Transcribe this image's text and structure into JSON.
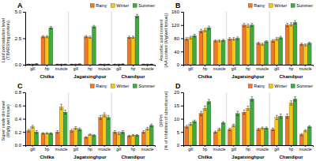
{
  "chart_data": [
    {
      "type": "bar",
      "title": "A",
      "y_label": "Lipid peroxidation level\n(TBARS/mg protein)",
      "categories": [
        "gill",
        "hp",
        "muscle",
        "gill",
        "hp",
        "muscle",
        "gill",
        "hp",
        "muscle"
      ],
      "x_groups": [
        "Chilka",
        "Jagatsinghpur",
        "Chandipur"
      ],
      "series": [
        {
          "name": "Rainy",
          "color": "#F07820",
          "values": [
            0.05,
            2.65,
            0.05,
            0.05,
            2.65,
            0.05,
            0.05,
            2.6,
            0.05
          ],
          "errors": [
            0.01,
            0.1,
            0.01,
            0.01,
            0.1,
            0.01,
            0.01,
            0.1,
            0.01
          ]
        },
        {
          "name": "Winter",
          "color": "#F5C518",
          "values": [
            0.05,
            2.65,
            0.05,
            0.05,
            2.6,
            0.05,
            0.05,
            2.6,
            0.05
          ],
          "errors": [
            0.01,
            0.1,
            0.01,
            0.01,
            0.1,
            0.01,
            0.01,
            0.1,
            0.01
          ]
        },
        {
          "name": "Summer",
          "color": "#3DAA3D",
          "values": [
            0.08,
            3.5,
            0.05,
            0.07,
            3.6,
            0.05,
            0.07,
            4.6,
            0.05
          ],
          "errors": [
            0.01,
            0.12,
            0.01,
            0.01,
            0.12,
            0.01,
            0.01,
            0.15,
            0.01
          ]
        }
      ],
      "ylim": [
        0,
        5
      ],
      "yticks": [
        {
          "value": 0,
          "label": "0.0"
        },
        2.5,
        {
          "value": 5,
          "label": "5.0"
        }
      ],
      "grid": false,
      "legend": "top"
    },
    {
      "type": "bar",
      "title": "B",
      "y_label": "Ascorbic acid content\n(AA content (Mg/wet tissue))",
      "categories": [
        "gill",
        "hp",
        "muscle",
        "gill",
        "hp",
        "muscle",
        "gill",
        "hp",
        "muscle"
      ],
      "x_groups": [
        "Chilka",
        "Jagatsinghpur",
        "Chandipur"
      ],
      "series": [
        {
          "name": "Rainy",
          "color": "#F07820",
          "values": [
            78,
            102,
            72,
            78,
            120,
            65,
            72,
            120,
            62
          ],
          "errors": [
            4,
            5,
            3,
            4,
            5,
            3,
            4,
            5,
            3
          ]
        },
        {
          "name": "Winter",
          "color": "#F5C518",
          "values": [
            82,
            105,
            72,
            78,
            118,
            62,
            78,
            122,
            60
          ],
          "errors": [
            4,
            5,
            3,
            4,
            5,
            3,
            4,
            5,
            3
          ]
        },
        {
          "name": "Summer",
          "color": "#3DAA3D",
          "values": [
            88,
            112,
            74,
            80,
            120,
            70,
            82,
            128,
            65
          ],
          "errors": [
            4,
            5,
            3,
            4,
            5,
            3,
            4,
            5,
            3
          ]
        }
      ],
      "ylim": [
        0,
        160
      ],
      "yticks": [
        0,
        40,
        80,
        120,
        160
      ],
      "grid": false,
      "legend": "top"
    },
    {
      "type": "bar",
      "title": "C",
      "y_label": "Super oxide dis-level\n(Mg/g wet tissue)",
      "categories": [
        "gill",
        "hp",
        "muscle",
        "gill",
        "hp",
        "muscle",
        "gill",
        "hp",
        "muscle"
      ],
      "x_groups": [
        "Chilka",
        "Jagatsinghpur",
        "Chandipur"
      ],
      "series": [
        {
          "name": "Rainy",
          "color": "#F07820",
          "values": [
            0.22,
            0.18,
            0.2,
            0.22,
            0.12,
            0.42,
            0.2,
            0.14,
            0.2
          ],
          "errors": [
            0.02,
            0.01,
            0.02,
            0.02,
            0.01,
            0.03,
            0.02,
            0.01,
            0.02
          ]
        },
        {
          "name": "Winter",
          "color": "#F5C518",
          "values": [
            0.28,
            0.18,
            0.58,
            0.26,
            0.16,
            0.46,
            0.18,
            0.15,
            0.25
          ],
          "errors": [
            0.02,
            0.01,
            0.04,
            0.02,
            0.01,
            0.03,
            0.02,
            0.01,
            0.02
          ]
        },
        {
          "name": "Summer",
          "color": "#3DAA3D",
          "values": [
            0.2,
            0.18,
            0.5,
            0.24,
            0.15,
            0.42,
            0.2,
            0.15,
            0.3
          ],
          "errors": [
            0.02,
            0.01,
            0.03,
            0.02,
            0.01,
            0.03,
            0.02,
            0.01,
            0.02
          ]
        }
      ],
      "ylim": [
        0,
        0.8
      ],
      "yticks": [
        {
          "value": 0,
          "label": "0.0"
        },
        0.2,
        0.4,
        0.6,
        0.8
      ],
      "grid": false,
      "legend": "top"
    },
    {
      "type": "bar",
      "title": "D",
      "y_label": "DPPH\n(% of Inhibition of absorbance)",
      "categories": [
        "gill",
        "hp",
        "muscle",
        "gill",
        "hp",
        "muscle",
        "gill",
        "hp",
        "muscle"
      ],
      "x_groups": [
        "Chilka",
        "Jagatsinghpur",
        "Chandipur"
      ],
      "series": [
        {
          "name": "Rainy",
          "color": "#F07820",
          "values": [
            7.0,
            12.0,
            5.0,
            6.0,
            12.5,
            6.0,
            6.0,
            11.0,
            4.0
          ],
          "errors": [
            0.5,
            0.8,
            0.4,
            0.5,
            0.8,
            0.4,
            0.5,
            0.8,
            0.4
          ]
        },
        {
          "name": "Winter",
          "color": "#F5C518",
          "values": [
            8.0,
            14.0,
            6.0,
            7.5,
            14.0,
            6.5,
            10.5,
            16.0,
            5.5
          ],
          "errors": [
            0.5,
            0.8,
            0.4,
            0.5,
            0.8,
            0.4,
            0.8,
            0.8,
            0.4
          ]
        },
        {
          "name": "Summer",
          "color": "#3DAA3D",
          "values": [
            9.0,
            16.5,
            8.5,
            12.0,
            17.5,
            6.5,
            11.0,
            17.5,
            7.0
          ],
          "errors": [
            0.5,
            0.8,
            0.4,
            0.8,
            0.8,
            0.4,
            0.8,
            0.8,
            0.4
          ]
        }
      ],
      "ylim": [
        0,
        20
      ],
      "yticks": [
        0,
        5,
        10,
        15,
        20
      ],
      "grid": false,
      "legend": "top"
    }
  ]
}
